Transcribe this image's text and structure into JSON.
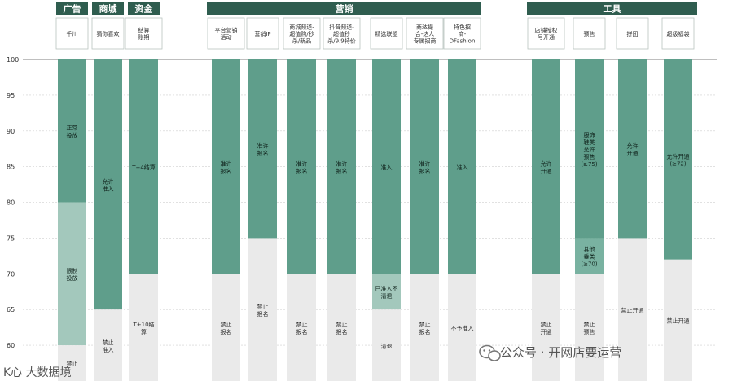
{
  "chart_data": {
    "type": "bar",
    "stacked": true,
    "ylim": [
      55,
      100
    ],
    "yticks": [
      100,
      95,
      90,
      85,
      80,
      75,
      70,
      65,
      60
    ],
    "grid": true,
    "groups": [
      {
        "label": "广告",
        "columns": [
          0
        ]
      },
      {
        "label": "商城",
        "columns": [
          1
        ]
      },
      {
        "label": "资金",
        "columns": [
          2
        ]
      },
      {
        "label": "营销",
        "columns": [
          3,
          4,
          5,
          6,
          7,
          8,
          9
        ]
      },
      {
        "label": "工具",
        "columns": [
          10,
          11,
          12,
          13
        ]
      }
    ],
    "columns": [
      {
        "label": "千川",
        "segments": [
          {
            "from": 80,
            "to": 100,
            "label": "正常\n投放",
            "level": "allow"
          },
          {
            "from": 60,
            "to": 80,
            "label": "限制\n投放",
            "level": "limited"
          },
          {
            "from": 55,
            "to": 60,
            "label": "禁止",
            "level": "ban"
          }
        ]
      },
      {
        "label": "猜你喜欢",
        "segments": [
          {
            "from": 65,
            "to": 100,
            "label": "允许\n准入",
            "level": "allow"
          },
          {
            "from": 55,
            "to": 65,
            "label": "禁止\n准入",
            "level": "ban"
          }
        ]
      },
      {
        "label": "结算\n账期",
        "segments": [
          {
            "from": 70,
            "to": 100,
            "label": "T+4结算",
            "level": "allow"
          },
          {
            "from": 55,
            "to": 70,
            "label": "T+10结\n算",
            "level": "ban"
          }
        ]
      },
      {
        "label": "平台营销\n活动",
        "segments": [
          {
            "from": 70,
            "to": 100,
            "label": "准许\n报名",
            "level": "allow"
          },
          {
            "from": 55,
            "to": 70,
            "label": "禁止\n报名",
            "level": "ban"
          }
        ]
      },
      {
        "label": "营销IP",
        "segments": [
          {
            "from": 75,
            "to": 100,
            "label": "准许\n报名",
            "level": "allow"
          },
          {
            "from": 55,
            "to": 75,
            "label": "禁止\n报名",
            "level": "ban"
          }
        ]
      },
      {
        "label": "商城频道-\n超值购/秒\n杀/新品",
        "segments": [
          {
            "from": 70,
            "to": 100,
            "label": "准许\n报名",
            "level": "allow"
          },
          {
            "from": 55,
            "to": 70,
            "label": "禁止\n报名",
            "level": "ban"
          }
        ]
      },
      {
        "label": "抖音频道-\n超值秒\n杀/9.9特价",
        "segments": [
          {
            "from": 70,
            "to": 100,
            "label": "准许\n报名",
            "level": "allow"
          },
          {
            "from": 55,
            "to": 70,
            "label": "禁止\n报名",
            "level": "ban"
          }
        ]
      },
      {
        "label": "精选联盟",
        "segments": [
          {
            "from": 70,
            "to": 100,
            "label": "准入",
            "level": "allow"
          },
          {
            "from": 65,
            "to": 70,
            "label": "已准入不\n清退",
            "level": "limited"
          },
          {
            "from": 55,
            "to": 65,
            "label": "清退",
            "level": "ban"
          }
        ]
      },
      {
        "label": "商达撮\n合-达人\n专属招商",
        "segments": [
          {
            "from": 70,
            "to": 100,
            "label": "准许\n报名",
            "level": "allow"
          },
          {
            "from": 55,
            "to": 70,
            "label": "禁止\n报名",
            "level": "ban"
          }
        ]
      },
      {
        "label": "特色招\n商-\nDFashion",
        "segments": [
          {
            "from": 70,
            "to": 100,
            "label": "准入",
            "level": "allow"
          },
          {
            "from": 55,
            "to": 70,
            "label": "不予准入",
            "level": "ban"
          }
        ]
      },
      {
        "label": "店铺授权\n号开通",
        "segments": [
          {
            "from": 70,
            "to": 100,
            "label": "允许\n开通",
            "level": "allow"
          },
          {
            "from": 55,
            "to": 70,
            "label": "禁止\n开通",
            "level": "ban"
          }
        ]
      },
      {
        "label": "预售",
        "segments": [
          {
            "from": 75,
            "to": 100,
            "label": "服饰\n鞋类\n允许\n预售\n(≥75)",
            "level": "allow"
          },
          {
            "from": 70,
            "to": 75,
            "label": "其他\n垂类\n(≥70)",
            "level": "allow2"
          },
          {
            "from": 55,
            "to": 70,
            "label": "禁止\n预售",
            "level": "ban"
          }
        ]
      },
      {
        "label": "拼团",
        "segments": [
          {
            "from": 75,
            "to": 100,
            "label": "允许\n开通",
            "level": "allow"
          },
          {
            "from": 55,
            "to": 75,
            "label": "禁止开通",
            "level": "ban"
          }
        ]
      },
      {
        "label": "超级福袋",
        "segments": [
          {
            "from": 72,
            "to": 100,
            "label": "允许开通\n(≥72)",
            "level": "allow"
          },
          {
            "from": 55,
            "to": 72,
            "label": "禁止开通",
            "level": "ban"
          }
        ]
      }
    ]
  },
  "colors": {
    "allow": "#5f9e8b",
    "allow2": "#79b2a1",
    "limited": "#a3c8bc",
    "ban": "#eaeaea",
    "header": "#2f5d4f"
  },
  "watermarks": {
    "left": "K心 大数据境",
    "right": "公众号 · 开网店要运营"
  }
}
